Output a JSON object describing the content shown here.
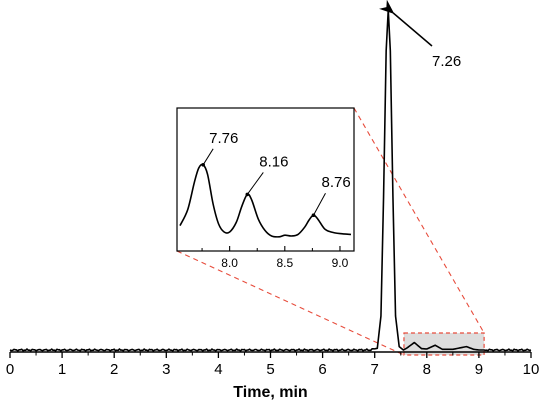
{
  "chart_data": {
    "type": "line",
    "xlabel": "Time, min",
    "ylabel": "",
    "xlim": [
      0,
      10
    ],
    "x_ticks": [
      "0",
      "1",
      "2",
      "3",
      "4",
      "5",
      "6",
      "7",
      "8",
      "9",
      "10"
    ],
    "grid": false,
    "series": [
      {
        "points": [
          [
            0,
            0.0
          ],
          [
            1,
            0.0
          ],
          [
            2,
            0.0
          ],
          [
            3,
            0.0
          ],
          [
            4,
            0.0
          ],
          [
            5,
            0.0
          ],
          [
            6,
            0.0
          ],
          [
            6.9,
            0.0
          ],
          [
            7.05,
            0.005
          ],
          [
            7.12,
            0.1
          ],
          [
            7.17,
            0.45
          ],
          [
            7.22,
            0.88
          ],
          [
            7.26,
            1.0
          ],
          [
            7.3,
            0.88
          ],
          [
            7.35,
            0.45
          ],
          [
            7.4,
            0.1
          ],
          [
            7.47,
            0.01
          ],
          [
            7.55,
            0.0
          ],
          [
            7.62,
            0.006
          ],
          [
            7.76,
            0.022
          ],
          [
            7.9,
            0.004
          ],
          [
            8.0,
            0.003
          ],
          [
            8.16,
            0.014
          ],
          [
            8.3,
            0.002
          ],
          [
            8.5,
            0.002
          ],
          [
            8.76,
            0.01
          ],
          [
            8.9,
            0.002
          ],
          [
            9.0,
            0.0
          ],
          [
            10,
            0.0
          ]
        ]
      }
    ],
    "annotations": [
      {
        "text": "7.26",
        "x": 7.26
      }
    ],
    "zoom_region": {
      "xlim": [
        7.6,
        9.1
      ]
    },
    "inset": {
      "xlim": [
        7.55,
        9.1
      ],
      "x_ticks": [
        "8.0",
        "8.5",
        "9.0"
      ],
      "annotations": [
        {
          "text": "7.76",
          "x": 7.76
        },
        {
          "text": "8.16",
          "x": 8.16
        },
        {
          "text": "8.76",
          "x": 8.76
        }
      ],
      "points": [
        [
          7.55,
          0.18
        ],
        [
          7.62,
          0.38
        ],
        [
          7.68,
          0.72
        ],
        [
          7.72,
          0.9
        ],
        [
          7.76,
          0.94
        ],
        [
          7.8,
          0.82
        ],
        [
          7.85,
          0.45
        ],
        [
          7.9,
          0.2
        ],
        [
          7.95,
          0.1
        ],
        [
          8.0,
          0.1
        ],
        [
          8.06,
          0.22
        ],
        [
          8.11,
          0.42
        ],
        [
          8.16,
          0.57
        ],
        [
          8.2,
          0.5
        ],
        [
          8.26,
          0.26
        ],
        [
          8.32,
          0.12
        ],
        [
          8.38,
          0.05
        ],
        [
          8.45,
          0.04
        ],
        [
          8.5,
          0.06
        ],
        [
          8.56,
          0.05
        ],
        [
          8.62,
          0.07
        ],
        [
          8.68,
          0.16
        ],
        [
          8.72,
          0.25
        ],
        [
          8.76,
          0.31
        ],
        [
          8.8,
          0.26
        ],
        [
          8.86,
          0.14
        ],
        [
          8.92,
          0.1
        ],
        [
          9.0,
          0.08
        ],
        [
          9.1,
          0.07
        ]
      ]
    }
  }
}
